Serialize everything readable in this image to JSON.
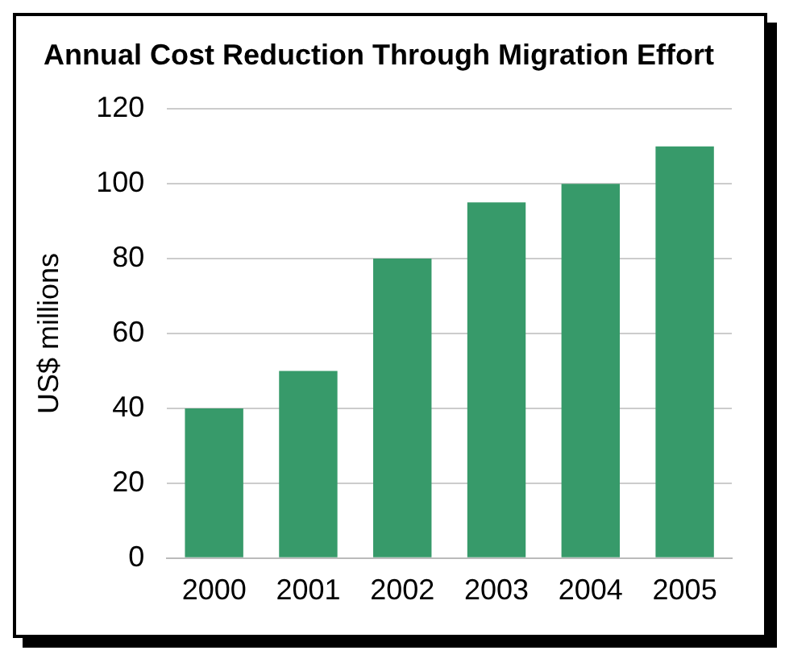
{
  "chart_data": {
    "type": "bar",
    "title": "Annual Cost Reduction Through Migration Effort",
    "categories": [
      "2000",
      "2001",
      "2002",
      "2003",
      "2004",
      "2005"
    ],
    "values": [
      40,
      50,
      80,
      95,
      100,
      110
    ],
    "color": "#379a6a",
    "ylabel": "US$ millions",
    "ylim": [
      0,
      120
    ],
    "yticks": [
      0,
      20,
      40,
      60,
      80,
      100,
      120
    ],
    "grid": "y",
    "legend": false
  }
}
